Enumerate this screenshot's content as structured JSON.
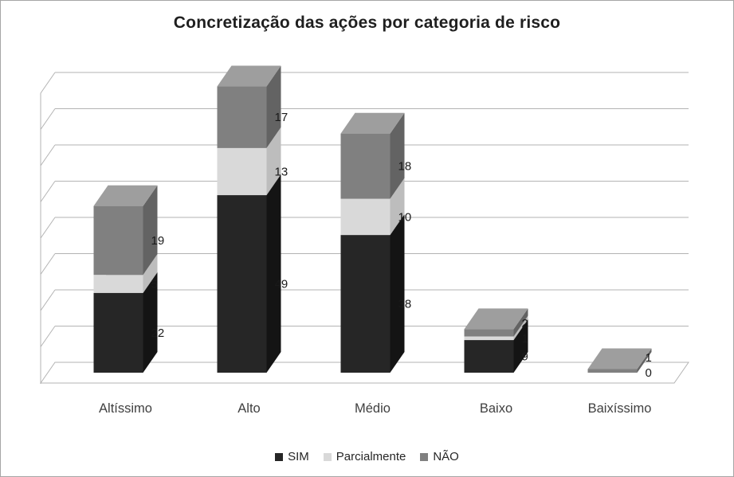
{
  "chart_data": {
    "type": "bar",
    "variant": "stacked-3d",
    "title": "Concretização das ações por categoria de risco",
    "categories": [
      "Altíssimo",
      "Alto",
      "Médio",
      "Baixo",
      "Baixíssimo"
    ],
    "series": [
      {
        "name": "SIM",
        "color": "#262626",
        "color_top": "#454545",
        "color_side": "#141414",
        "values": [
          22,
          49,
          38,
          9,
          0
        ]
      },
      {
        "name": "Parcialmente",
        "color": "#d9d9d9",
        "color_top": "#ededed",
        "color_side": "#bdbdbd",
        "values": [
          5,
          13,
          10,
          1,
          null
        ]
      },
      {
        "name": "NÃO",
        "color": "#808080",
        "color_top": "#9e9e9e",
        "color_side": "#636363",
        "values": [
          19,
          17,
          18,
          2,
          1
        ]
      }
    ],
    "totals": [
      46,
      79,
      66,
      12,
      1
    ],
    "data_labels_visible": true,
    "ylim": [
      0,
      80
    ],
    "gridline_step": 10,
    "axis_tick_labels": "none",
    "legend_position": "bottom",
    "grid": true,
    "gridline_color": "#b3b3b3",
    "value_label_color": "#1a1a1a",
    "category_label_color": "#404040",
    "background": "#ffffff"
  }
}
